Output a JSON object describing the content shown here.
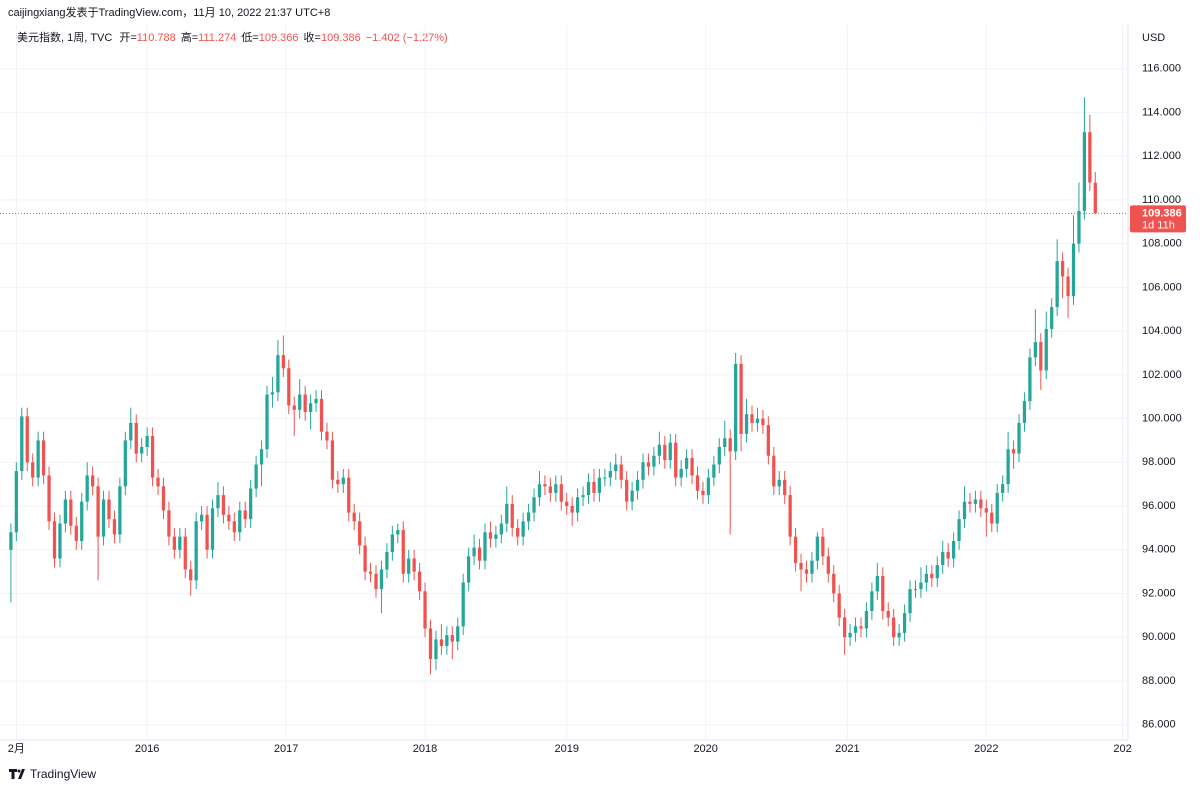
{
  "chart_data": {
    "type": "candlestick",
    "attribution": "caijingxiang发表于TradingView.com，11月 10, 2022 21:37 UTC+8",
    "legend": {
      "symbol": "美元指数, 1周, TVC",
      "items": [
        {
          "label": "开=",
          "value": "110.788"
        },
        {
          "label": "高=",
          "value": "111.274"
        },
        {
          "label": "低=",
          "value": "109.366"
        },
        {
          "label": "收=",
          "value": "109.386"
        }
      ],
      "change": "−1.402 (−1.27%)"
    },
    "currency": "USD",
    "price_label": "109.386",
    "countdown": "1d 11h",
    "brand": "TradingView",
    "up_color": "#26a69a",
    "down_color": "#ef5350",
    "grid": true,
    "xlim": [
      -2,
      205
    ],
    "xticks": [
      {
        "value": 1,
        "label": "2月"
      },
      {
        "value": 25,
        "label": "2016"
      },
      {
        "value": 50.5,
        "label": "2017"
      },
      {
        "value": 76,
        "label": "2018"
      },
      {
        "value": 102,
        "label": "2019"
      },
      {
        "value": 127.5,
        "label": "2020"
      },
      {
        "value": 153.5,
        "label": "2021"
      },
      {
        "value": 179,
        "label": "2022"
      },
      {
        "value": 204,
        "label": "202"
      }
    ],
    "ylim": [
      85.3,
      118
    ],
    "yticks": [
      {
        "value": 86,
        "label": "86.000"
      },
      {
        "value": 88,
        "label": "88.000"
      },
      {
        "value": 90,
        "label": "90.000"
      },
      {
        "value": 92,
        "label": "92.000"
      },
      {
        "value": 94,
        "label": "94.000"
      },
      {
        "value": 96,
        "label": "96.000"
      },
      {
        "value": 98,
        "label": "98.000"
      },
      {
        "value": 100,
        "label": "100.000"
      },
      {
        "value": 102,
        "label": "102.000"
      },
      {
        "value": 104,
        "label": "104.000"
      },
      {
        "value": 106,
        "label": "106.000"
      },
      {
        "value": 108,
        "label": "108.000"
      },
      {
        "value": 110,
        "label": "110.000"
      },
      {
        "value": 112,
        "label": "112.000"
      },
      {
        "value": 114,
        "label": "114.000"
      },
      {
        "value": 116,
        "label": "116.000"
      }
    ],
    "open": [
      94.0,
      94.8,
      97.6,
      100.1,
      98.0,
      97.3,
      99.0,
      97.4,
      95.3,
      93.6,
      95.2,
      96.3,
      95.1,
      94.4,
      96.2,
      97.4,
      96.9,
      94.6,
      96.3,
      95.4,
      94.7,
      96.9,
      99.0,
      99.8,
      98.4,
      98.7,
      99.2,
      97.3,
      96.9,
      95.8,
      94.6,
      94.0,
      94.6,
      93.1,
      92.6,
      95.3,
      95.6,
      94.0,
      95.9,
      96.5,
      95.6,
      95.3,
      94.8,
      95.8,
      95.4,
      96.8,
      97.9,
      98.6,
      101.1,
      101.2,
      102.9,
      102.3,
      100.6,
      100.4,
      101.1,
      100.3,
      100.7,
      100.9,
      99.4,
      99.0,
      97.2,
      97.0,
      97.3,
      95.7,
      95.3,
      94.2,
      93.0,
      92.9,
      92.2,
      93.1,
      93.9,
      94.7,
      94.9,
      92.9,
      93.6,
      93.0,
      92.1,
      90.4,
      89.0,
      89.9,
      89.6,
      90.1,
      89.8,
      90.5,
      92.5,
      93.7,
      94.1,
      93.5,
      94.8,
      94.5,
      94.7,
      95.2,
      96.1,
      95.0,
      94.6,
      95.3,
      95.7,
      96.4,
      97.0,
      96.9,
      96.6,
      97.0,
      96.2,
      96.0,
      95.7,
      96.4,
      96.5,
      97.1,
      96.6,
      97.3,
      97.3,
      97.6,
      97.9,
      97.2,
      96.2,
      96.7,
      97.2,
      98.0,
      97.8,
      98.3,
      98.8,
      98.1,
      98.9,
      97.3,
      97.7,
      98.2,
      97.4,
      96.7,
      96.5,
      97.3,
      97.9,
      98.7,
      99.1,
      98.5,
      102.5,
      99.3,
      100.2,
      99.8,
      100.0,
      99.7,
      98.3,
      96.9,
      97.2,
      96.5,
      94.6,
      93.4,
      93.1,
      92.9,
      93.5,
      94.6,
      93.7,
      92.9,
      92.0,
      90.9,
      90.0,
      90.2,
      90.5,
      90.4,
      91.2,
      92.1,
      92.8,
      91.2,
      90.9,
      90.0,
      90.2,
      91.1,
      92.2,
      92.2,
      92.5,
      92.9,
      92.7,
      93.3,
      93.9,
      93.6,
      94.4,
      95.4,
      96.2,
      96.1,
      96.3,
      95.9,
      95.7,
      95.2,
      96.6,
      97.0,
      98.6,
      98.4,
      99.8,
      100.8,
      102.8,
      103.5,
      102.2,
      104.1,
      105.1,
      107.2,
      106.5,
      105.6,
      108.0,
      109.5,
      113.1,
      110.788
    ],
    "high": [
      95.2,
      98.0,
      100.5,
      100.5,
      98.4,
      99.4,
      99.4,
      97.8,
      95.7,
      95.6,
      96.7,
      96.7,
      95.5,
      96.6,
      98.0,
      97.8,
      97.3,
      96.7,
      96.7,
      95.8,
      97.3,
      99.4,
      100.5,
      100.2,
      99.1,
      99.6,
      99.6,
      97.7,
      97.3,
      96.2,
      95.0,
      95.0,
      95.0,
      93.5,
      95.7,
      96.0,
      96.0,
      96.3,
      97.1,
      96.9,
      96.0,
      95.7,
      96.2,
      96.2,
      97.2,
      98.3,
      99.0,
      101.5,
      101.9,
      103.6,
      103.8,
      102.7,
      101.0,
      101.8,
      101.5,
      101.1,
      101.3,
      101.3,
      99.8,
      99.4,
      97.6,
      97.7,
      97.7,
      96.1,
      95.7,
      94.6,
      93.4,
      93.3,
      93.5,
      94.3,
      95.1,
      95.2,
      95.3,
      94.0,
      94.0,
      93.4,
      92.5,
      90.8,
      90.3,
      90.6,
      90.5,
      90.5,
      90.9,
      92.9,
      94.1,
      94.7,
      94.5,
      95.2,
      95.3,
      95.1,
      95.6,
      96.9,
      96.5,
      95.4,
      95.7,
      96.1,
      96.8,
      97.6,
      97.4,
      97.3,
      97.4,
      97.4,
      96.6,
      96.4,
      96.8,
      96.9,
      97.5,
      97.7,
      97.7,
      97.7,
      98.0,
      98.4,
      98.3,
      97.6,
      97.1,
      97.6,
      98.4,
      98.4,
      98.7,
      99.4,
      99.2,
      99.3,
      99.3,
      98.1,
      98.6,
      98.6,
      97.8,
      97.1,
      97.7,
      98.3,
      99.1,
      99.9,
      99.5,
      103.0,
      102.9,
      100.9,
      100.6,
      100.5,
      100.4,
      100.1,
      98.7,
      97.6,
      97.6,
      96.9,
      95.0,
      93.8,
      93.5,
      93.9,
      94.8,
      95.0,
      94.1,
      93.3,
      92.4,
      91.3,
      90.6,
      90.9,
      90.9,
      91.6,
      92.5,
      93.4,
      93.2,
      91.6,
      91.3,
      90.6,
      91.5,
      92.6,
      92.6,
      93.2,
      93.3,
      93.3,
      93.7,
      94.4,
      94.3,
      94.8,
      95.8,
      96.9,
      96.6,
      96.7,
      96.7,
      96.3,
      96.1,
      97.0,
      97.4,
      99.4,
      99.0,
      100.2,
      101.2,
      103.2,
      105.0,
      103.9,
      104.9,
      105.5,
      108.2,
      107.6,
      106.9,
      109.3,
      110.8,
      114.7,
      113.9,
      111.274
    ],
    "low": [
      91.6,
      94.4,
      97.2,
      97.6,
      96.9,
      96.9,
      97.0,
      94.9,
      93.2,
      93.2,
      94.8,
      94.7,
      94.0,
      94.0,
      95.8,
      96.5,
      92.6,
      94.2,
      95.0,
      94.3,
      94.3,
      96.5,
      98.6,
      98.0,
      98.0,
      98.3,
      96.9,
      96.5,
      95.4,
      94.2,
      93.6,
      93.6,
      92.7,
      91.9,
      92.2,
      94.9,
      93.6,
      93.6,
      95.5,
      95.2,
      94.9,
      94.4,
      94.4,
      95.0,
      95.0,
      96.4,
      96.9,
      98.2,
      100.5,
      100.8,
      101.9,
      100.2,
      99.2,
      100.0,
      99.9,
      99.5,
      100.3,
      99.0,
      98.6,
      96.8,
      96.6,
      96.6,
      95.3,
      94.9,
      93.8,
      92.6,
      92.5,
      91.8,
      91.1,
      92.7,
      93.5,
      94.3,
      92.5,
      92.5,
      92.6,
      91.7,
      90.0,
      88.3,
      88.5,
      89.2,
      89.2,
      89.0,
      89.4,
      90.1,
      92.1,
      93.3,
      93.1,
      93.1,
      94.1,
      94.1,
      94.3,
      94.8,
      94.6,
      94.2,
      94.2,
      94.9,
      95.3,
      96.0,
      96.5,
      96.2,
      96.2,
      95.8,
      95.6,
      95.1,
      95.3,
      96.0,
      96.1,
      96.2,
      96.2,
      96.9,
      96.9,
      97.2,
      96.8,
      95.8,
      95.8,
      96.3,
      96.8,
      97.4,
      97.4,
      97.9,
      97.7,
      97.7,
      96.9,
      96.9,
      97.3,
      97.0,
      96.3,
      96.1,
      96.1,
      96.9,
      97.5,
      98.3,
      94.7,
      98.1,
      98.5,
      98.9,
      99.4,
      99.4,
      99.3,
      97.9,
      96.5,
      96.5,
      96.1,
      94.2,
      93.0,
      92.1,
      92.5,
      92.5,
      93.1,
      93.3,
      92.5,
      91.6,
      90.5,
      89.2,
      89.6,
      89.8,
      90.0,
      90.0,
      90.8,
      91.7,
      90.8,
      90.5,
      89.6,
      89.6,
      89.8,
      90.7,
      91.8,
      91.8,
      92.1,
      92.3,
      92.3,
      92.9,
      93.2,
      93.2,
      94.0,
      95.0,
      95.7,
      95.7,
      95.5,
      94.6,
      94.8,
      94.8,
      96.2,
      96.6,
      97.7,
      98.0,
      99.4,
      100.4,
      102.4,
      101.3,
      101.8,
      103.7,
      104.7,
      105.5,
      104.6,
      105.2,
      107.6,
      109.1,
      110.4,
      109.366
    ],
    "close": [
      94.8,
      97.6,
      100.1,
      98.0,
      97.3,
      99.0,
      97.4,
      95.3,
      93.6,
      95.2,
      96.3,
      95.1,
      94.4,
      96.2,
      97.4,
      96.9,
      94.6,
      96.3,
      95.4,
      94.7,
      96.9,
      99.0,
      99.8,
      98.4,
      98.7,
      99.2,
      97.3,
      96.9,
      95.8,
      94.6,
      94.0,
      94.6,
      93.1,
      92.6,
      95.3,
      95.6,
      94.0,
      95.9,
      96.5,
      95.6,
      95.3,
      94.8,
      95.8,
      95.4,
      96.8,
      97.9,
      98.6,
      101.1,
      101.2,
      102.9,
      102.3,
      100.6,
      100.4,
      101.1,
      100.3,
      100.7,
      100.9,
      99.4,
      99.0,
      97.2,
      97.0,
      97.3,
      95.7,
      95.3,
      94.2,
      93.0,
      92.9,
      92.2,
      93.1,
      93.9,
      94.7,
      94.9,
      92.9,
      93.6,
      93.0,
      92.1,
      90.4,
      89.0,
      89.9,
      89.6,
      90.1,
      89.8,
      90.5,
      92.5,
      93.7,
      94.1,
      93.5,
      94.8,
      94.5,
      94.7,
      95.2,
      96.1,
      95.0,
      94.6,
      95.3,
      95.7,
      96.4,
      97.0,
      96.9,
      96.6,
      97.0,
      96.2,
      96.0,
      95.7,
      96.4,
      96.5,
      97.1,
      96.6,
      97.3,
      97.3,
      97.6,
      97.9,
      97.2,
      96.2,
      96.7,
      97.2,
      98.0,
      97.8,
      98.3,
      98.8,
      98.1,
      98.9,
      97.3,
      97.7,
      98.2,
      97.4,
      96.7,
      96.5,
      97.3,
      97.9,
      98.7,
      99.1,
      98.5,
      102.5,
      99.3,
      100.2,
      99.8,
      100.0,
      99.7,
      98.3,
      96.9,
      97.2,
      96.5,
      94.6,
      93.4,
      93.1,
      92.9,
      93.5,
      94.6,
      93.7,
      92.9,
      92.0,
      90.9,
      90.0,
      90.2,
      90.5,
      90.4,
      91.2,
      92.1,
      92.8,
      91.2,
      90.9,
      90.0,
      90.2,
      91.1,
      92.2,
      92.2,
      92.5,
      92.9,
      92.7,
      93.3,
      93.9,
      93.6,
      94.4,
      95.4,
      96.2,
      96.1,
      96.3,
      95.9,
      95.7,
      95.2,
      96.6,
      97.0,
      98.6,
      98.4,
      99.8,
      100.8,
      102.8,
      103.5,
      102.2,
      104.1,
      105.1,
      107.2,
      106.5,
      105.6,
      108.0,
      109.5,
      113.1,
      110.8,
      109.386
    ]
  }
}
